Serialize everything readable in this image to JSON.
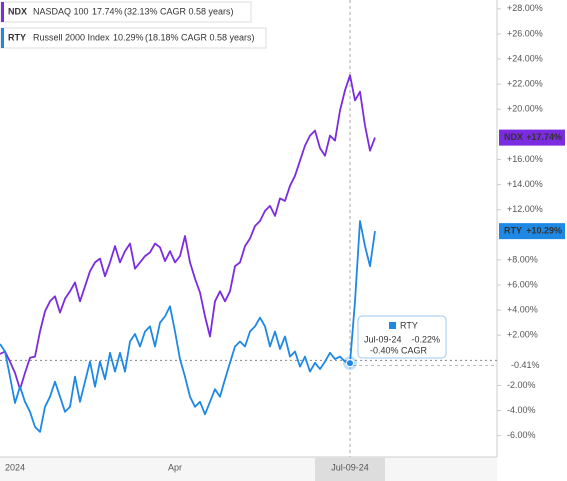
{
  "chart_data": {
    "type": "line",
    "categories": [
      null,
      null,
      null,
      "2024",
      null,
      null,
      null,
      null,
      null,
      null,
      null,
      null,
      null,
      null,
      null,
      null,
      null,
      null,
      null,
      null,
      null,
      null,
      null,
      null,
      null,
      null,
      null,
      null,
      null,
      null,
      null,
      null,
      null,
      null,
      null,
      "Apr",
      null,
      null,
      null,
      null,
      null,
      null,
      null,
      null,
      null,
      null,
      null,
      null,
      null,
      null,
      null,
      null,
      null,
      null,
      null,
      null,
      null,
      null,
      null,
      null,
      null,
      null,
      null,
      null,
      null,
      null,
      null,
      null,
      null,
      null,
      "Jul-09-24",
      null,
      null,
      null,
      null,
      null
    ],
    "series": [
      {
        "name": "NDX",
        "color": "#7b2be0",
        "end_label": "+17.74%",
        "values": [
          0.5,
          0.7,
          -0.1,
          -1,
          -2.3,
          -1,
          0.2,
          0.3,
          2.3,
          3.9,
          4.7,
          5.1,
          3.8,
          4.9,
          5.5,
          6.2,
          4.7,
          5.9,
          7.1,
          7.8,
          8.1,
          6.7,
          7.8,
          9.1,
          7.8,
          8.7,
          9.3,
          7.3,
          7.8,
          8.3,
          8.6,
          9.3,
          9.0,
          7.9,
          8.7,
          7.8,
          8.3,
          9.9,
          7.8,
          6.5,
          5.4,
          3.5,
          1.9,
          4.7,
          5.5,
          4.7,
          5.5,
          7.5,
          7.8,
          9.1,
          9.7,
          10.7,
          11.1,
          11.9,
          12.3,
          11.5,
          12.9,
          12.7,
          13.9,
          14.7,
          15.9,
          17.1,
          17.9,
          18.3,
          16.9,
          16.3,
          17.9,
          17.5,
          19.9,
          21.5,
          22.7,
          20.7,
          21.4,
          18.7,
          16.7,
          17.74
        ]
      },
      {
        "name": "RTY",
        "color": "#1e88e5",
        "end_label": "+10.29%",
        "values": [
          1.3,
          0.7,
          -1.3,
          -3.4,
          -2.1,
          -3.3,
          -4.1,
          -5.3,
          -5.7,
          -3.7,
          -2.9,
          -1.7,
          -2.9,
          -4.1,
          -3.7,
          -1.3,
          -3.3,
          -1.7,
          -0.1,
          -2.1,
          -0.1,
          -1.5,
          0.6,
          -0.9,
          0.6,
          -0.9,
          1.5,
          2.1,
          1.1,
          2.3,
          2.7,
          1.1,
          3.0,
          3.5,
          4.3,
          2.3,
          0.1,
          -1.3,
          -2.9,
          -3.7,
          -3.3,
          -4.3,
          -3.3,
          -2.3,
          -2.9,
          -1.5,
          -0.2,
          1.1,
          1.5,
          1.1,
          2.3,
          2.7,
          3.4,
          2.7,
          1.1,
          2.3,
          0.9,
          1.9,
          0.3,
          0.7,
          -0.5,
          0.3,
          -0.9,
          -0.2,
          -0.7,
          -0.1,
          0.6,
          0.1,
          0.3,
          -0.1,
          -0.22,
          4.7,
          11.1,
          9.1,
          7.5,
          10.29
        ]
      }
    ],
    "legend": [
      {
        "symbol": "NDX",
        "name": "NASDAQ 100",
        "change": "17.74%",
        "detail": "(32.13% CAGR 0.58 years)"
      },
      {
        "symbol": "RTY",
        "name": "Russell 2000 Index",
        "change": "10.29%",
        "detail": "(18.18% CAGR 0.58 years)"
      }
    ],
    "reference": {
      "value": -0.41,
      "label": "-0.41%"
    },
    "tooltip": {
      "name": "RTY",
      "date": "Jul-09-24",
      "value": "-0.22%",
      "cagr": "-0.40% CAGR"
    },
    "ylim": [
      -7.7,
      28.7
    ],
    "yticks": [
      {
        "value": 28,
        "label": "+28.00%"
      },
      {
        "value": 26,
        "label": "+26.00%"
      },
      {
        "value": 24,
        "label": "+24.00%"
      },
      {
        "value": 22,
        "label": "+22.00%"
      },
      {
        "value": 20,
        "label": "+20.00%"
      },
      {
        "value": 16,
        "label": "+16.00%"
      },
      {
        "value": 14,
        "label": "+14.00%"
      },
      {
        "value": 12,
        "label": "+12.00%"
      },
      {
        "value": 8,
        "label": "+8.00%"
      },
      {
        "value": 6,
        "label": "+6.00%"
      },
      {
        "value": 4,
        "label": "+4.00%"
      },
      {
        "value": 2,
        "label": "+2.00%"
      },
      {
        "value": -2,
        "label": "-2.00%"
      },
      {
        "value": -4,
        "label": "-4.00%"
      },
      {
        "value": -6,
        "label": "-6.00%"
      }
    ],
    "grid": false
  }
}
